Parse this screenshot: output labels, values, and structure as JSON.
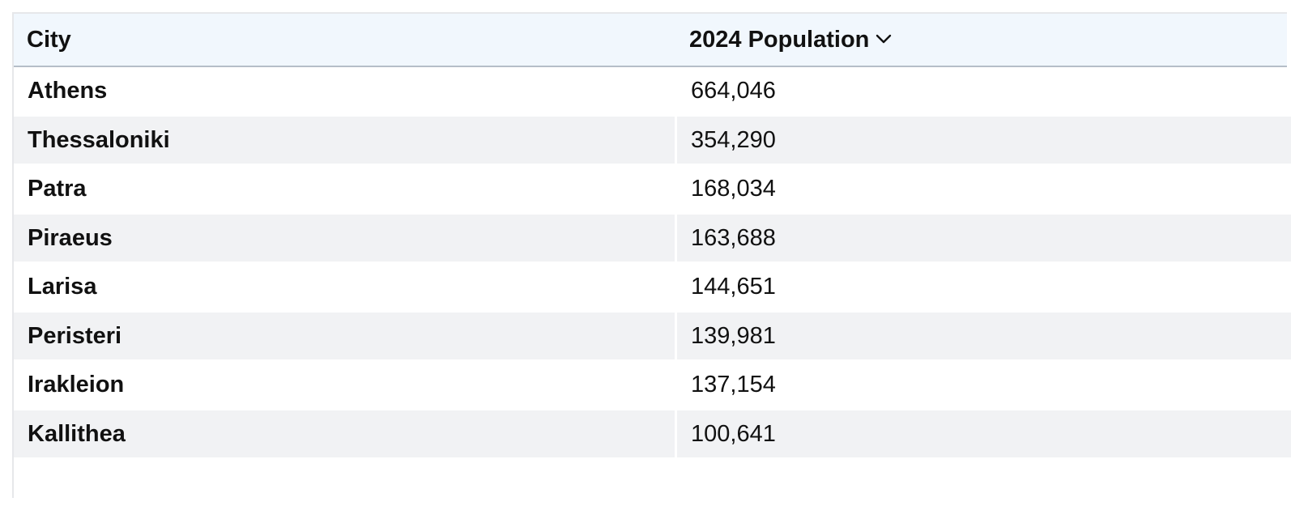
{
  "table": {
    "headers": {
      "city": "City",
      "population": "2024 Population"
    },
    "sort_icon": "chevron-down-icon",
    "rows": [
      {
        "city": "Athens",
        "population": "664,046"
      },
      {
        "city": "Thessaloniki",
        "population": "354,290"
      },
      {
        "city": "Patra",
        "population": "168,034"
      },
      {
        "city": "Piraeus",
        "population": "163,688"
      },
      {
        "city": "Larisa",
        "population": "144,651"
      },
      {
        "city": "Peristeri",
        "population": "139,981"
      },
      {
        "city": "Irakleion",
        "population": "137,154"
      },
      {
        "city": "Kallithea",
        "population": "100,641"
      },
      {
        "city": "",
        "population": ""
      }
    ]
  },
  "colors": {
    "header_bg": "#f1f7fd",
    "row_alt_bg": "#f1f2f4",
    "grid_line": "#e6e7ea",
    "header_rule": "#b5bec8"
  }
}
